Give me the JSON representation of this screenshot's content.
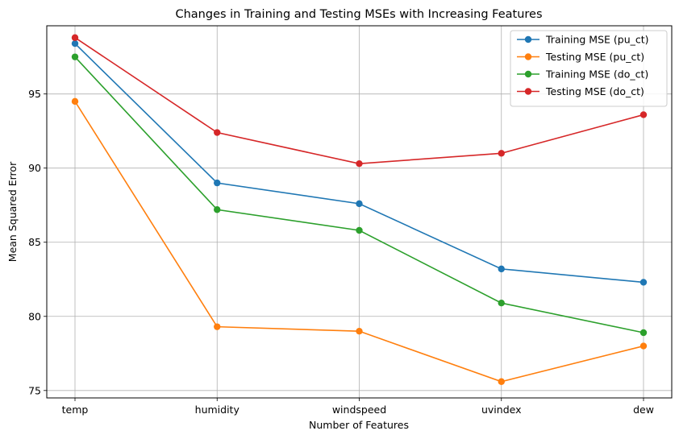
{
  "chart_data": {
    "type": "line",
    "title": "Changes in Training and Testing MSEs with Increasing Features",
    "xlabel": "Number of Features",
    "ylabel": "Mean Squared Error",
    "categories": [
      "temp",
      "humidity",
      "windspeed",
      "uvindex",
      "dew"
    ],
    "ylim": [
      74.5,
      99.6
    ],
    "yticks": [
      75,
      80,
      85,
      90,
      95
    ],
    "grid": true,
    "legend_position": "top-right",
    "series": [
      {
        "name": "Training MSE (pu_ct)",
        "color": "#1f77b4",
        "values": [
          98.4,
          89.0,
          87.6,
          83.2,
          82.3
        ]
      },
      {
        "name": "Testing MSE (pu_ct)",
        "color": "#ff7f0e",
        "values": [
          94.5,
          79.3,
          79.0,
          75.6,
          78.0
        ]
      },
      {
        "name": "Training MSE (do_ct)",
        "color": "#2ca02c",
        "values": [
          97.5,
          87.2,
          85.8,
          80.9,
          78.9
        ]
      },
      {
        "name": "Testing MSE (do_ct)",
        "color": "#d62728",
        "values": [
          98.8,
          92.4,
          90.3,
          91.0,
          93.6
        ]
      }
    ]
  }
}
